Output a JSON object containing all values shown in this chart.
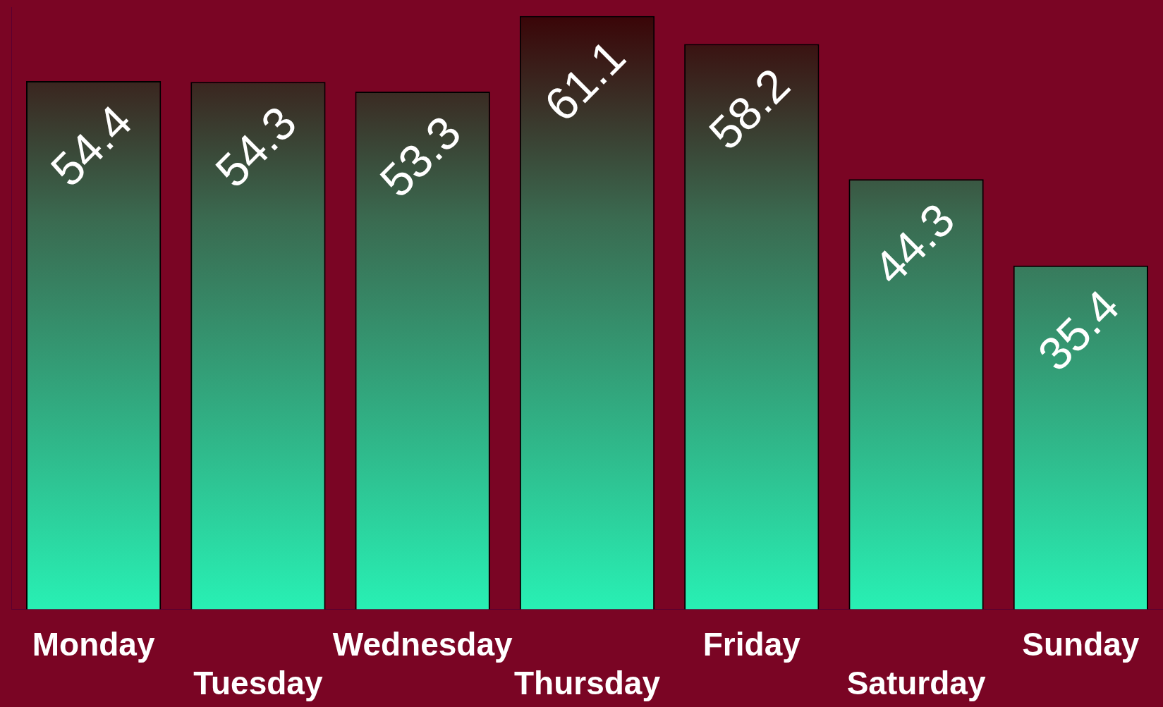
{
  "chart_data": {
    "type": "bar",
    "categories": [
      "Monday",
      "Tuesday",
      "Wednesday",
      "Thursday",
      "Friday",
      "Saturday",
      "Sunday"
    ],
    "values": [
      54.4,
      54.3,
      53.3,
      61.1,
      58.2,
      44.3,
      35.4
    ],
    "color": "#28f0b4",
    "data_labels": true,
    "grid": false,
    "legend": false
  }
}
